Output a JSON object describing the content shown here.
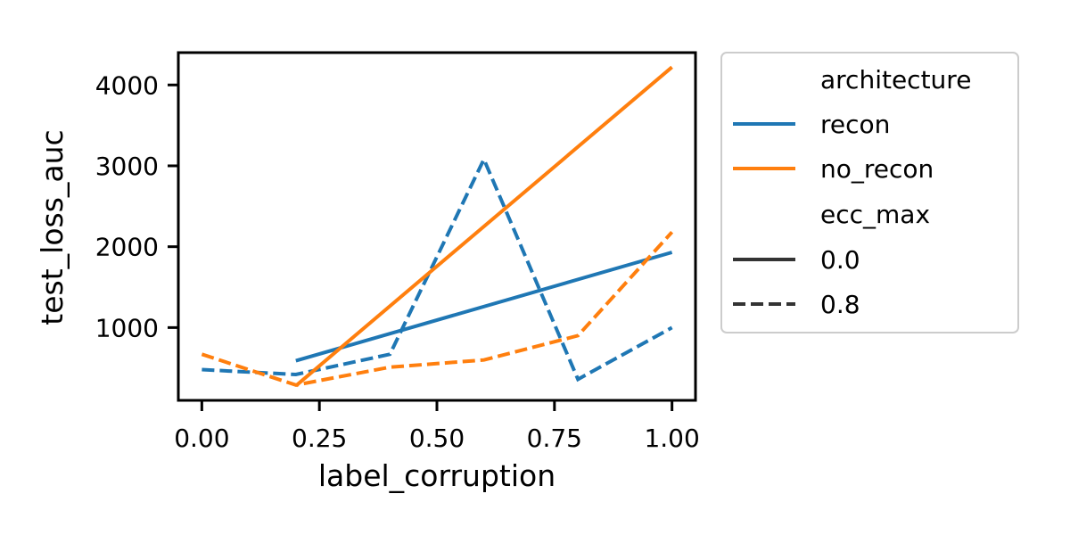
{
  "chart_data": {
    "type": "line",
    "xlabel": "label_corruption",
    "ylabel": "test_loss_auc",
    "xlim": [
      -0.05,
      1.05
    ],
    "ylim": [
      100,
      4400
    ],
    "x_ticks": [
      0.0,
      0.25,
      0.5,
      0.75,
      1.0
    ],
    "x_tick_labels": [
      "0.00",
      "0.25",
      "0.50",
      "0.75",
      "1.00"
    ],
    "y_ticks": [
      1000,
      2000,
      3000,
      4000
    ],
    "y_tick_labels": [
      "1000",
      "2000",
      "3000",
      "4000"
    ],
    "grid": false,
    "legend": {
      "placement": "outside-right",
      "hue_title": "architecture",
      "style_title": "ecc_max"
    },
    "series": [
      {
        "architecture": "recon",
        "ecc_max": "0.0",
        "color": "#1f77b4",
        "dash": "solid",
        "x": [
          0.2,
          1.0
        ],
        "y": [
          590,
          1930
        ]
      },
      {
        "architecture": "recon",
        "ecc_max": "0.8",
        "color": "#1f77b4",
        "dash": "dashed",
        "x": [
          0.0,
          0.2,
          0.4,
          0.6,
          0.8,
          1.0
        ],
        "y": [
          480,
          420,
          670,
          3080,
          360,
          1000
        ]
      },
      {
        "architecture": "no_recon",
        "ecc_max": "0.0",
        "color": "#ff7f0e",
        "dash": "solid",
        "x": [
          0.2,
          1.0
        ],
        "y": [
          280,
          4220
        ]
      },
      {
        "architecture": "no_recon",
        "ecc_max": "0.8",
        "color": "#ff7f0e",
        "dash": "dashed",
        "x": [
          0.0,
          0.2,
          0.4,
          0.6,
          0.8,
          1.0
        ],
        "y": [
          670,
          290,
          510,
          600,
          900,
          2180
        ]
      }
    ],
    "legend_entries": [
      {
        "label": "recon",
        "color": "#1f77b4",
        "dash": "solid"
      },
      {
        "label": "no_recon",
        "color": "#ff7f0e",
        "dash": "solid"
      },
      {
        "label": "0.0",
        "color": "#333333",
        "dash": "solid"
      },
      {
        "label": "0.8",
        "color": "#333333",
        "dash": "dashed"
      }
    ]
  }
}
